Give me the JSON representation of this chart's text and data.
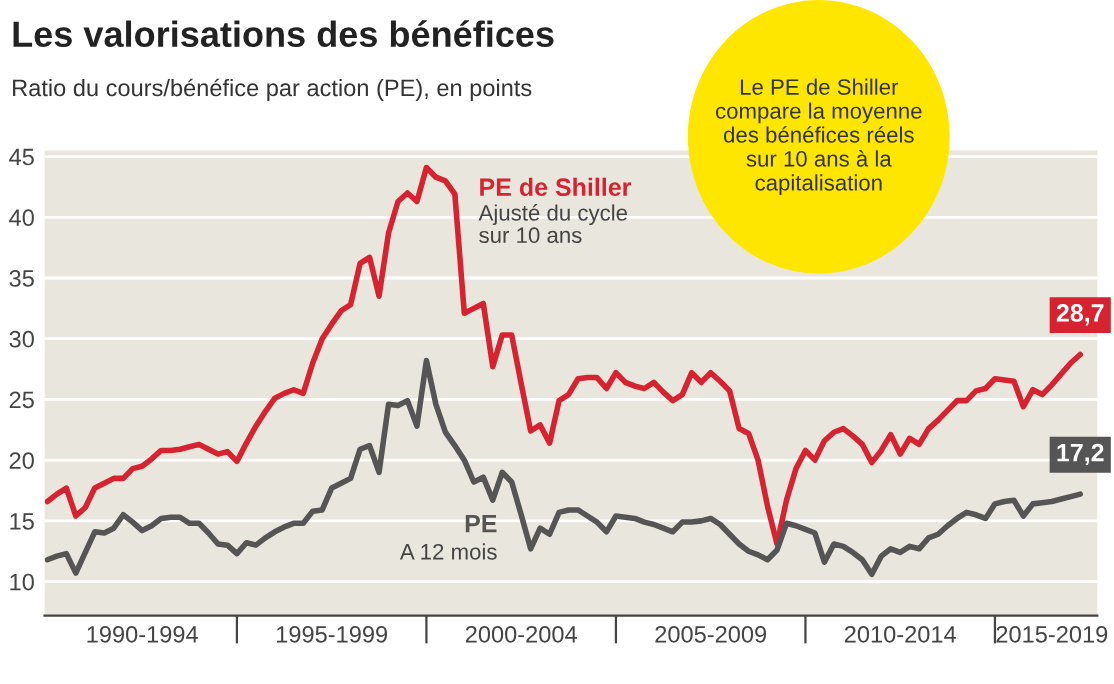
{
  "chart_data": {
    "type": "line",
    "title": "Les valorisations des bénéfices",
    "subtitle": "Ratio du cours/bénéfice par action (PE), en points",
    "categories": [
      null,
      null,
      null,
      null,
      null,
      null,
      null,
      null,
      null,
      null,
      "1990-1994",
      null,
      null,
      null,
      null,
      null,
      null,
      null,
      null,
      null,
      null,
      null,
      null,
      null,
      null,
      null,
      null,
      null,
      null,
      null,
      "1995-1999",
      null,
      null,
      null,
      null,
      null,
      null,
      null,
      null,
      null,
      null,
      null,
      null,
      null,
      null,
      null,
      null,
      null,
      null,
      null,
      "2000-2004",
      null,
      null,
      null,
      null,
      null,
      null,
      null,
      null,
      null,
      null,
      null,
      null,
      null,
      null,
      null,
      null,
      null,
      null,
      null,
      "2005-2009",
      null,
      null,
      null,
      null,
      null,
      null,
      null,
      null,
      null,
      null,
      null,
      null,
      null,
      null,
      null,
      null,
      null,
      null,
      null,
      "2010-2014",
      null,
      null,
      null,
      null,
      null,
      null,
      null,
      null,
      null,
      null,
      null,
      null,
      null,
      null,
      null,
      "2015-2019",
      null,
      null,
      null
    ],
    "series": [
      {
        "name": "PE de Shiller",
        "color": "#d7232f",
        "values": [
          16.6,
          17.2,
          17.7,
          15.4,
          16.1,
          17.7,
          18.1,
          18.5,
          18.5,
          19.3,
          19.5,
          20.1,
          20.8,
          20.8,
          20.9,
          21.1,
          21.3,
          20.9,
          20.5,
          20.7,
          19.9,
          21.4,
          22.8,
          24.0,
          25.1,
          25.5,
          25.8,
          25.5,
          28.0,
          30.0,
          31.2,
          32.3,
          32.8,
          36.2,
          36.7,
          33.5,
          38.7,
          41.3,
          42.0,
          41.3,
          44.1,
          43.3,
          43.0,
          41.9,
          32.1,
          32.5,
          32.9,
          27.7,
          30.3,
          30.3,
          26.3,
          22.4,
          22.9,
          21.4,
          24.9,
          25.4,
          26.7,
          26.8,
          26.8,
          25.9,
          27.2,
          26.4,
          26.1,
          25.9,
          26.4,
          25.6,
          24.9,
          25.4,
          27.2,
          26.4,
          27.2,
          26.5,
          25.7,
          22.6,
          22.2,
          20.0,
          16.2,
          13.1,
          16.7,
          19.3,
          20.8,
          20.0,
          21.6,
          22.3,
          22.6,
          22.0,
          21.3,
          19.8,
          20.8,
          22.1,
          20.5,
          21.8,
          21.3,
          22.6,
          23.3,
          24.1,
          24.9,
          24.9,
          25.7,
          25.9,
          26.7,
          26.6,
          26.5,
          24.4,
          25.8,
          25.4,
          26.2,
          27.1,
          28.0,
          28.7
        ]
      },
      {
        "name": "PE",
        "color": "#555555",
        "values": [
          11.8,
          12.1,
          12.3,
          10.7,
          12.4,
          14.1,
          14.0,
          14.4,
          15.5,
          14.9,
          14.2,
          14.6,
          15.2,
          15.3,
          15.3,
          14.8,
          14.8,
          14.0,
          13.1,
          13.0,
          12.3,
          13.2,
          13.0,
          13.6,
          14.1,
          14.5,
          14.8,
          14.8,
          15.8,
          15.9,
          17.7,
          18.1,
          18.5,
          20.9,
          21.2,
          19.0,
          24.6,
          24.5,
          24.9,
          22.8,
          28.2,
          24.6,
          22.3,
          21.2,
          20.0,
          18.2,
          18.6,
          16.7,
          19.0,
          18.2,
          15.5,
          12.7,
          14.4,
          13.9,
          15.7,
          15.9,
          15.9,
          15.4,
          14.9,
          14.1,
          15.4,
          15.3,
          15.2,
          14.9,
          14.7,
          14.4,
          14.1,
          14.9,
          14.9,
          15.0,
          15.2,
          14.7,
          13.9,
          13.1,
          12.5,
          12.2,
          11.8,
          12.6,
          14.8,
          14.6,
          14.3,
          14.0,
          11.6,
          13.1,
          12.9,
          12.4,
          11.8,
          10.6,
          12.1,
          12.7,
          12.4,
          12.9,
          12.7,
          13.6,
          13.9,
          14.6,
          15.2,
          15.7,
          15.5,
          15.2,
          16.4,
          16.6,
          16.7,
          15.4,
          16.4,
          16.5,
          16.6,
          16.8,
          17.0,
          17.2
        ]
      }
    ],
    "ylim": [
      7.2,
      45.5
    ],
    "yticks": [
      10,
      15,
      20,
      25,
      30,
      35,
      40,
      45
    ],
    "grid": "y",
    "legend": false,
    "annotations": [
      {
        "text": "28,7",
        "y": 28.7
      },
      {
        "text": "17,2",
        "y": 17.2
      },
      "Ajusté du cycle\nsur 10 ans",
      "A 12 mois",
      "Le PE de Shiller\ncompare la moyenne\ndes bénéfices réels\nsur 10 ans à la\ncapitalisation"
    ]
  }
}
